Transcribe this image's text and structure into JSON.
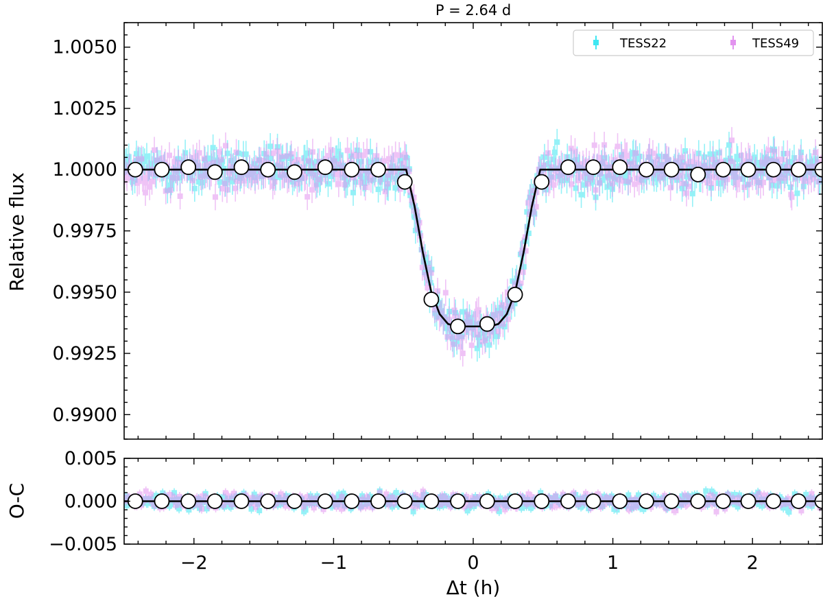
{
  "chart_data": [
    {
      "type": "scatter",
      "panel": "light-curve",
      "title": "P = 2.64 d",
      "xlabel": "",
      "ylabel": "Relative flux",
      "xlim": [
        -2.5,
        2.5
      ],
      "ylim": [
        0.989,
        1.006
      ],
      "x_ticks": [
        -2,
        -1,
        0,
        1,
        2
      ],
      "y_ticks": [
        0.99,
        0.9925,
        0.995,
        0.9975,
        1.0,
        1.0025,
        1.005
      ],
      "y_tick_labels": [
        "0.9900",
        "0.9925",
        "0.9950",
        "0.9975",
        "1.0000",
        "1.0025",
        "1.0050"
      ],
      "grid": false,
      "legend_position": "top-right",
      "series": [
        {
          "name": "TESS22",
          "color": "#3ee7f2",
          "kind": "errorbar-points",
          "scatter_level": 0.0006
        },
        {
          "name": "TESS49",
          "color": "#e293ef",
          "kind": "errorbar-points",
          "scatter_level": 0.0006
        },
        {
          "kind": "model-line",
          "color": "#000000",
          "x": [
            -2.5,
            -0.48,
            -0.42,
            -0.36,
            -0.3,
            -0.24,
            -0.18,
            -0.12,
            -0.06,
            0.0,
            0.06,
            0.12,
            0.18,
            0.24,
            0.3,
            0.36,
            0.42,
            0.48,
            2.5
          ],
          "y": [
            1.0,
            1.0,
            0.9985,
            0.9966,
            0.995,
            0.9941,
            0.9937,
            0.9936,
            0.9936,
            0.9936,
            0.9936,
            0.9936,
            0.9937,
            0.9941,
            0.995,
            0.9966,
            0.9985,
            1.0,
            1.0
          ]
        },
        {
          "kind": "binned-points",
          "color": "#ffffff",
          "x": [
            -2.42,
            -2.23,
            -2.04,
            -1.85,
            -1.66,
            -1.47,
            -1.28,
            -1.06,
            -0.87,
            -0.68,
            -0.49,
            -0.3,
            -0.11,
            0.1,
            0.3,
            0.49,
            0.68,
            0.86,
            1.05,
            1.24,
            1.42,
            1.61,
            1.79,
            1.97,
            2.15,
            2.33,
            2.5
          ],
          "y": [
            1.0,
            1.0,
            1.0001,
            0.9999,
            1.0001,
            1.0,
            0.9999,
            1.0001,
            1.0,
            1.0,
            0.9995,
            0.9947,
            0.9936,
            0.9937,
            0.9949,
            0.9995,
            1.0001,
            1.0001,
            1.0001,
            1.0,
            1.0,
            0.9998,
            1.0,
            1.0,
            1.0,
            1.0,
            1.0
          ]
        }
      ]
    },
    {
      "type": "scatter",
      "panel": "residuals",
      "title": "",
      "xlabel": "Δt (h)",
      "ylabel": "O-C",
      "xlim": [
        -2.5,
        2.5
      ],
      "ylim": [
        -0.005,
        0.005
      ],
      "x_ticks": [
        -2,
        -1,
        0,
        1,
        2
      ],
      "x_tick_labels": [
        "−2",
        "−1",
        "0",
        "1",
        "2"
      ],
      "y_ticks": [
        -0.005,
        0.0,
        0.005
      ],
      "y_tick_labels": [
        "−0.005",
        "0.000",
        "0.005"
      ],
      "grid": false,
      "series": [
        {
          "name": "TESS22",
          "color": "#3ee7f2",
          "kind": "errorbar-points",
          "scatter_level": 0.0006
        },
        {
          "name": "TESS49",
          "color": "#e293ef",
          "kind": "errorbar-points",
          "scatter_level": 0.0006
        },
        {
          "kind": "zero-line",
          "color": "#000000",
          "x": [
            -2.5,
            2.5
          ],
          "y": [
            0.0,
            0.0
          ]
        },
        {
          "kind": "binned-points",
          "color": "#ffffff",
          "x": [
            -2.42,
            -2.23,
            -2.04,
            -1.85,
            -1.66,
            -1.47,
            -1.28,
            -1.06,
            -0.87,
            -0.68,
            -0.49,
            -0.3,
            -0.11,
            0.1,
            0.3,
            0.49,
            0.68,
            0.86,
            1.05,
            1.24,
            1.42,
            1.61,
            1.79,
            1.97,
            2.15,
            2.33,
            2.5
          ],
          "y": [
            0.0,
            0.0,
            0.0,
            0.0,
            0.0,
            0.0,
            0.0,
            0.0,
            0.0,
            0.0,
            0.0,
            0.0,
            0.0,
            0.0,
            0.0,
            0.0,
            0.0,
            0.0,
            0.0,
            0.0,
            0.0,
            0.0,
            0.0,
            0.0,
            0.0,
            0.0,
            0.0
          ]
        }
      ]
    }
  ]
}
